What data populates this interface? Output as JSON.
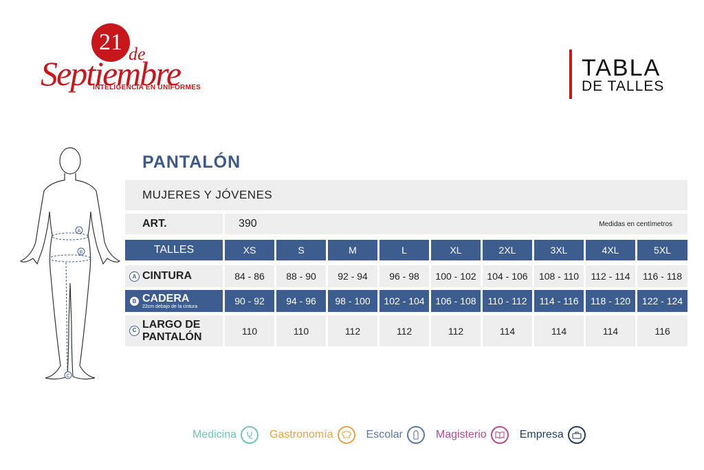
{
  "logo": {
    "number": "21",
    "de": "de",
    "name": "Septiembre",
    "tagline": "INTELIGENCIA EN UNIFORMES"
  },
  "header": {
    "title_line1": "TABLA",
    "title_line2": "DE TALLES"
  },
  "section": {
    "title": "PANTALÓN",
    "subtitle": "MUJERES Y JÓVENES"
  },
  "art": {
    "label": "ART.",
    "value": "390",
    "note": "Medidas en centímetros"
  },
  "table": {
    "header_label": "TALLES",
    "sizes": [
      "XS",
      "S",
      "M",
      "L",
      "XL",
      "2XL",
      "3XL",
      "4XL",
      "5XL"
    ],
    "rows": [
      {
        "marker": "A",
        "label": "CINTURA",
        "sublabel": "",
        "values": [
          "84 - 86",
          "88 - 90",
          "92 - 94",
          "96 - 98",
          "100 - 102",
          "104 - 106",
          "108 - 110",
          "112 - 114",
          "116 - 118"
        ]
      },
      {
        "marker": "B",
        "label": "CADERA",
        "sublabel": "22cm debajo de la cintura",
        "values": [
          "90 - 92",
          "94 - 96",
          "98 - 100",
          "102 - 104",
          "106 - 108",
          "110 - 112",
          "114 - 116",
          "118 - 120",
          "122 - 124"
        ]
      },
      {
        "marker": "C",
        "label": "LARGO DE PANTALÓN",
        "sublabel": "",
        "values": [
          "110",
          "110",
          "112",
          "112",
          "112",
          "114",
          "114",
          "114",
          "116"
        ]
      }
    ]
  },
  "figure_markers": [
    "A",
    "B",
    "C"
  ],
  "footer": [
    {
      "label": "Medicina",
      "icon": "stethoscope-icon",
      "color": "#6fc3b8"
    },
    {
      "label": "Gastronomía",
      "icon": "chef-hat-icon",
      "color": "#e3a34a"
    },
    {
      "label": "Escolar",
      "icon": "pencil-icon",
      "color": "#5b78a6"
    },
    {
      "label": "Magisterio",
      "icon": "book-icon",
      "color": "#b54a8c"
    },
    {
      "label": "Empresa",
      "icon": "briefcase-icon",
      "color": "#1f3d5e"
    }
  ]
}
